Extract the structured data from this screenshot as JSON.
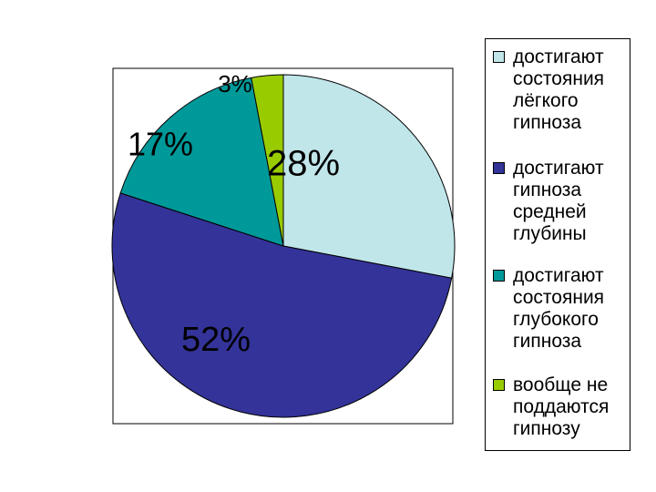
{
  "chart_data": {
    "type": "pie",
    "categories": [
      "достигают состояния лёгкого гипноза",
      "достигают гипноза средней глубины",
      "достигают состояния глубокого гипноза",
      "вообще не поддаются гипнозу"
    ],
    "values": [
      28,
      52,
      17,
      3
    ],
    "value_labels": [
      "28%",
      "52%",
      "17%",
      "3%"
    ],
    "colors": [
      "#c0e6ea",
      "#333399",
      "#009999",
      "#99cc00"
    ]
  }
}
